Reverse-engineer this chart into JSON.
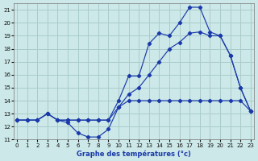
{
  "xlabel": "Graphe des températures (°c)",
  "bg_color": "#cce8e8",
  "grid_color": "#aacccc",
  "line_color": "#1a3aaa",
  "xlim": [
    -0.3,
    23.3
  ],
  "ylim": [
    11,
    21.5
  ],
  "yticks": [
    11,
    12,
    13,
    14,
    15,
    16,
    17,
    18,
    19,
    20,
    21
  ],
  "xticks": [
    0,
    1,
    2,
    3,
    4,
    5,
    6,
    7,
    8,
    9,
    10,
    11,
    12,
    13,
    14,
    15,
    16,
    17,
    18,
    19,
    20,
    21,
    22,
    23
  ],
  "line1_x": [
    0,
    1,
    2,
    3,
    4,
    5,
    6,
    7,
    8,
    9,
    10,
    11,
    12,
    13,
    14,
    15,
    16,
    17,
    18,
    19,
    20,
    21,
    22,
    23
  ],
  "line1_y": [
    12.5,
    12.5,
    12.5,
    13.0,
    12.5,
    12.3,
    11.5,
    11.2,
    11.2,
    11.8,
    13.5,
    14.0,
    14.0,
    14.0,
    14.0,
    14.0,
    14.0,
    14.0,
    14.0,
    14.0,
    14.0,
    14.0,
    14.0,
    13.2
  ],
  "line2_x": [
    0,
    1,
    2,
    3,
    4,
    5,
    6,
    7,
    8,
    9,
    10,
    11,
    12,
    13,
    14,
    15,
    16,
    17,
    18,
    19,
    20,
    21,
    22,
    23
  ],
  "line2_y": [
    12.5,
    12.5,
    12.5,
    13.0,
    12.5,
    12.5,
    12.5,
    12.5,
    12.5,
    12.5,
    13.5,
    14.5,
    15.0,
    16.0,
    17.0,
    18.0,
    18.5,
    19.2,
    19.3,
    19.0,
    19.0,
    17.5,
    15.0,
    13.2
  ],
  "line3_x": [
    0,
    1,
    2,
    3,
    4,
    5,
    6,
    7,
    8,
    9,
    10,
    11,
    12,
    13,
    14,
    15,
    16,
    17,
    18,
    19,
    20,
    21,
    22,
    23
  ],
  "line3_y": [
    12.5,
    12.5,
    12.5,
    13.0,
    12.5,
    12.5,
    12.5,
    12.5,
    12.5,
    12.5,
    14.0,
    15.9,
    15.9,
    18.4,
    19.2,
    19.0,
    20.0,
    21.2,
    21.2,
    19.3,
    19.0,
    17.5,
    15.0,
    13.2
  ]
}
